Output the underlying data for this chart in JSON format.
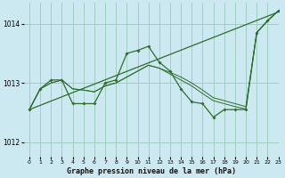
{
  "title": "Graphe pression niveau de la mer (hPa)",
  "bg_color": "#cce8f0",
  "grid_color": "#99ccbb",
  "line_color": "#2d6e2d",
  "xlim": [
    -0.5,
    23
  ],
  "ylim": [
    1011.75,
    1014.35
  ],
  "yticks": [
    1012,
    1013,
    1014
  ],
  "xticks": [
    0,
    1,
    2,
    3,
    4,
    5,
    6,
    7,
    8,
    9,
    10,
    11,
    12,
    13,
    14,
    15,
    16,
    17,
    18,
    19,
    20,
    21,
    22,
    23
  ],
  "trend_line": {
    "x": [
      0,
      23
    ],
    "y": [
      1012.55,
      1014.2
    ]
  },
  "jagged_line": {
    "x": [
      0,
      1,
      2,
      3,
      4,
      5,
      6,
      7,
      8,
      9,
      10,
      11,
      12,
      13,
      14,
      15,
      16,
      17,
      18,
      19,
      20,
      21,
      22,
      23
    ],
    "y": [
      1012.55,
      1012.9,
      1013.05,
      1013.05,
      1012.65,
      1012.65,
      1012.65,
      1013.0,
      1013.05,
      1013.5,
      1013.55,
      1013.62,
      1013.35,
      1013.2,
      1012.9,
      1012.68,
      1012.65,
      1012.42,
      1012.55,
      1012.55,
      1012.55,
      1013.85,
      1014.05,
      1014.22
    ]
  },
  "smooth_line1": {
    "x": [
      0,
      1,
      2,
      3,
      4,
      5,
      6,
      7,
      8,
      9,
      10,
      11,
      12,
      13,
      14,
      15,
      16,
      17,
      18,
      19,
      20,
      21,
      22,
      23
    ],
    "y": [
      1012.55,
      1012.9,
      1013.0,
      1013.05,
      1012.9,
      1012.88,
      1012.85,
      1012.95,
      1013.0,
      1013.1,
      1013.2,
      1013.3,
      1013.25,
      1013.18,
      1013.1,
      1013.0,
      1012.88,
      1012.75,
      1012.7,
      1012.65,
      1012.6,
      1013.85,
      1014.05,
      1014.22
    ]
  },
  "smooth_line2": {
    "x": [
      0,
      1,
      2,
      3,
      4,
      5,
      6,
      7,
      8,
      9,
      10,
      11,
      12,
      13,
      14,
      15,
      16,
      17,
      18,
      19,
      20,
      21,
      22,
      23
    ],
    "y": [
      1012.55,
      1012.9,
      1013.0,
      1013.05,
      1012.9,
      1012.88,
      1012.85,
      1012.95,
      1013.0,
      1013.1,
      1013.2,
      1013.3,
      1013.25,
      1013.15,
      1013.05,
      1012.95,
      1012.82,
      1012.7,
      1012.65,
      1012.6,
      1012.56,
      1013.85,
      1014.05,
      1014.22
    ]
  }
}
